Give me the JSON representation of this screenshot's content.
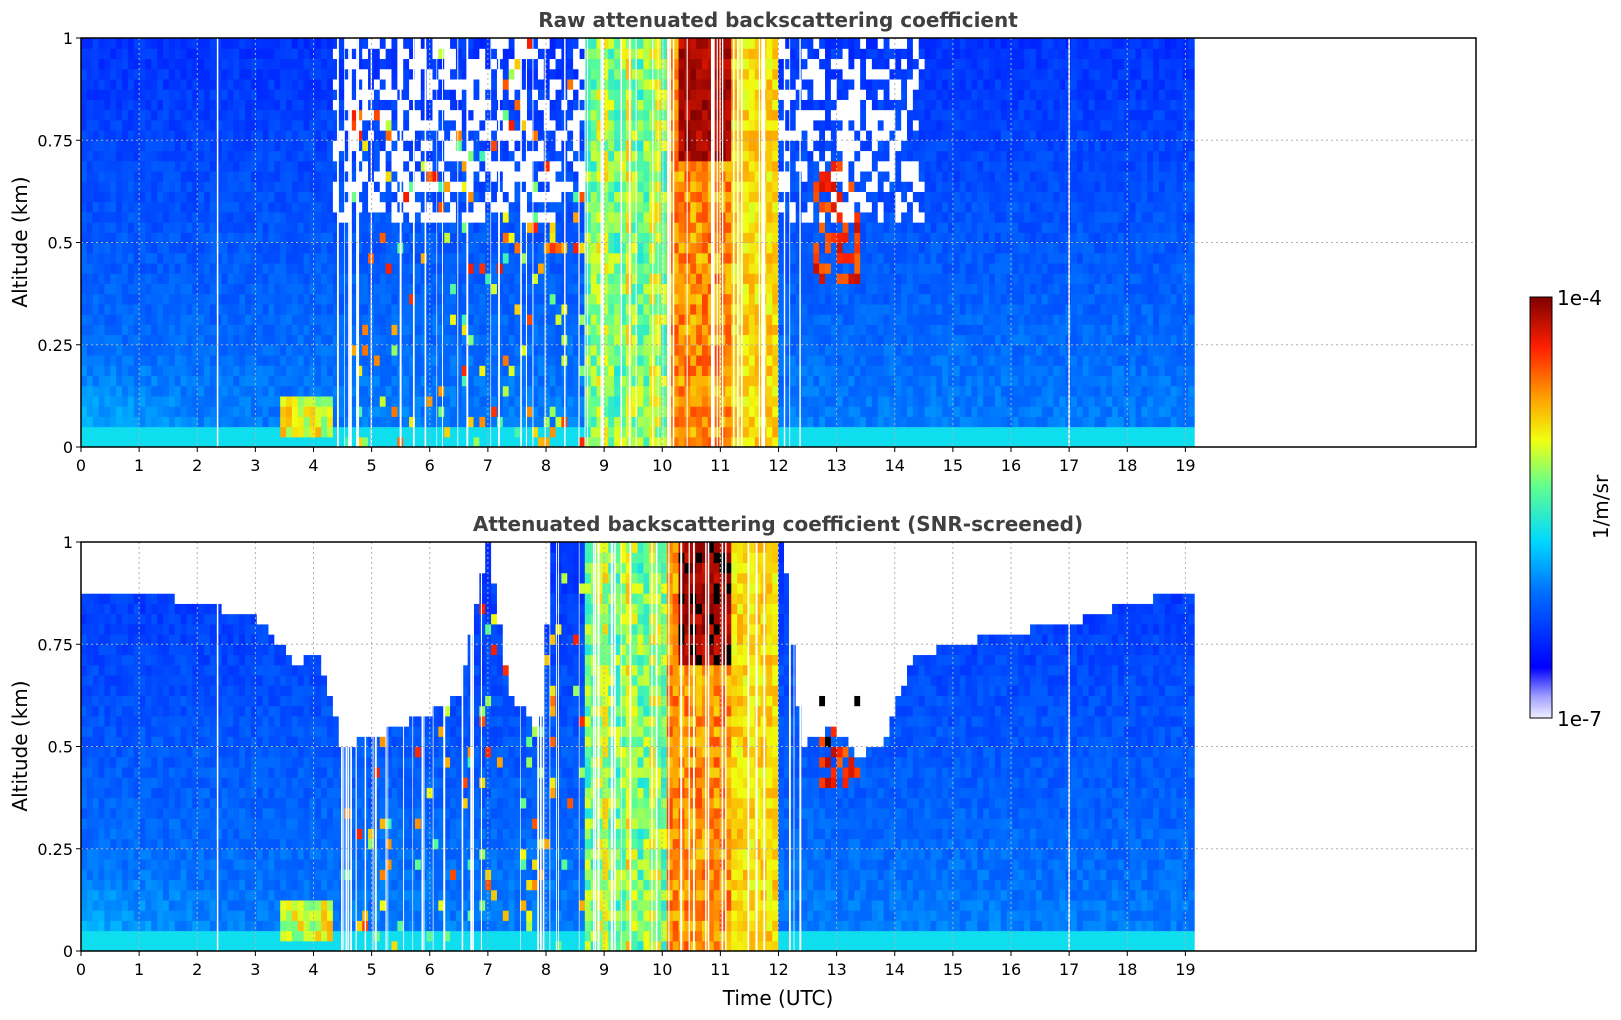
{
  "chart_data": [
    {
      "type": "heatmap",
      "title": "Raw attenuated backscattering coefficient",
      "xlabel": "",
      "ylabel": "Altitude (km)",
      "xlim": [
        0,
        24
      ],
      "ylim": [
        0,
        1
      ],
      "xticks": [
        "0",
        "1",
        "2",
        "3",
        "4",
        "5",
        "6",
        "7",
        "8",
        "9",
        "10",
        "11",
        "12",
        "13",
        "14",
        "15",
        "16",
        "17",
        "18",
        "19"
      ],
      "yticks": [
        "0",
        "0.25",
        "0.5",
        "0.75",
        "1"
      ],
      "data_extent_hours": 19.15,
      "grid": true,
      "color_scale": "jet, log 1e-7 to 1e-4",
      "regions": [
        {
          "x": [
            0,
            3.3
          ],
          "y": [
            0,
            1
          ],
          "intensity": "low (blue), light-blue near surface"
        },
        {
          "x": [
            3.5,
            4.3
          ],
          "y": [
            0.02,
            0.12
          ],
          "intensity": "moderate (green-orange aerosol)"
        },
        {
          "x": [
            4.5,
            8.7
          ],
          "y": [
            0,
            1
          ],
          "intensity": "mixed blue with scattered signal, noisy aloft"
        },
        {
          "x": [
            8.7,
            10.1
          ],
          "y": [
            0,
            1
          ],
          "intensity": "high (yellow-orange cloud/precip)"
        },
        {
          "x": [
            10.1,
            12.0
          ],
          "y": [
            0,
            1
          ],
          "intensity": "very high (orange-red, dark red aloft 0.75-1 km)"
        },
        {
          "x": [
            12.5,
            14.3
          ],
          "y": [
            0.3,
            1
          ],
          "intensity": "sparse, red streaks near 13 h"
        },
        {
          "x": [
            14.3,
            19.15
          ],
          "y": [
            0,
            1
          ],
          "intensity": "low (blue)"
        }
      ]
    },
    {
      "type": "heatmap",
      "title": "Attenuated backscattering coefficient (SNR-screened)",
      "xlabel": "Time (UTC)",
      "ylabel": "Altitude (km)",
      "xlim": [
        0,
        24
      ],
      "ylim": [
        0,
        1
      ],
      "xticks": [
        "0",
        "1",
        "2",
        "3",
        "4",
        "5",
        "6",
        "7",
        "8",
        "9",
        "10",
        "11",
        "12",
        "13",
        "14",
        "15",
        "16",
        "17",
        "18",
        "19"
      ],
      "yticks": [
        "0",
        "0.25",
        "0.5",
        "0.75",
        "1"
      ],
      "data_extent_hours": 19.15,
      "grid": true,
      "color_scale": "jet, log 1e-7 to 1e-4",
      "screened_top_km": [
        [
          0,
          0.88
        ],
        [
          1,
          0.88
        ],
        [
          2,
          0.85
        ],
        [
          3,
          0.82
        ],
        [
          3.7,
          0.7
        ],
        [
          4.1,
          0.73
        ],
        [
          4.5,
          0.5
        ],
        [
          5.5,
          0.55
        ],
        [
          6.5,
          0.62
        ],
        [
          7.0,
          1.0
        ],
        [
          7.4,
          0.62
        ],
        [
          7.9,
          0.55
        ],
        [
          8.1,
          1.0
        ],
        [
          12.1,
          1.0
        ],
        [
          12.4,
          0.5
        ],
        [
          12.9,
          0.55
        ],
        [
          13.4,
          0.48
        ],
        [
          13.8,
          0.5
        ],
        [
          14.3,
          0.72
        ],
        [
          15,
          0.75
        ],
        [
          16,
          0.78
        ],
        [
          17,
          0.8
        ],
        [
          18,
          0.85
        ],
        [
          19.15,
          0.88
        ]
      ]
    }
  ],
  "colorbar": {
    "label": "1/m/sr",
    "max_label": "1e-4",
    "min_label": "1e-7",
    "colormap": [
      "#ffffff",
      "#d0d0ff",
      "#0000ff",
      "#0080ff",
      "#00ffff",
      "#80ff80",
      "#ffff00",
      "#ff8000",
      "#ff0000",
      "#800000"
    ]
  }
}
